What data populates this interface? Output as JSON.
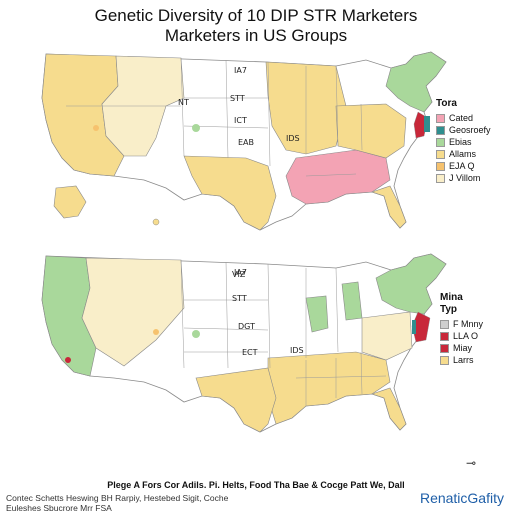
{
  "title_line1": "Genetic Diversity of 10 DIP STR Marketers",
  "title_line2": "Marketers in US Groups",
  "colors": {
    "pink": "#f3a3b4",
    "yellow": "#f6dc8e",
    "green": "#a9d89b",
    "teal": "#2f8f8f",
    "red": "#c8283a",
    "light": "#f9eec9",
    "border": "#8a8a8a"
  },
  "map_top": {
    "state_labels": [
      "IA7",
      "NT",
      "STT",
      "ICT",
      "EAB",
      "IDS"
    ],
    "legend": {
      "title": "Tora",
      "items": [
        {
          "label": "Cated",
          "color": "#f3a3b4"
        },
        {
          "label": "Geosroefy",
          "color": "#2f8f8f"
        },
        {
          "label": "Ebias",
          "color": "#a9d89b"
        },
        {
          "label": "Allams",
          "color": "#f6dc8e"
        },
        {
          "label": "EJA Q",
          "color": "#f6c26e"
        },
        {
          "label": "J Villom",
          "color": "#f9eec9"
        }
      ]
    }
  },
  "map_bottom": {
    "state_labels": [
      "IA7",
      "VIZ",
      "STT",
      "DGT",
      "ECT",
      "IDS"
    ],
    "legend": {
      "title": "Mina",
      "subtitle": "Typ",
      "items": [
        {
          "label": "F Mnny",
          "color": "#cfcfcf"
        },
        {
          "label": "LLA O",
          "color": "#c8283a"
        },
        {
          "label": "Miay",
          "color": "#c8283a"
        },
        {
          "label": "Larrs",
          "color": "#f6dc8e"
        }
      ]
    }
  },
  "caption": "Plege A Fors Cor Adils. Pi. Helts, Food Tha Bae & Cocge Patt We, Dall",
  "footer_line1": "Contec Schetts Heswing BH Rarpiy, Hestebed Sigit, Coche",
  "footer_line2": "Euleshes Sbucrore Mrr FSA",
  "brand": "RenaticGafity",
  "compass_icon": "north-arrow-icon"
}
